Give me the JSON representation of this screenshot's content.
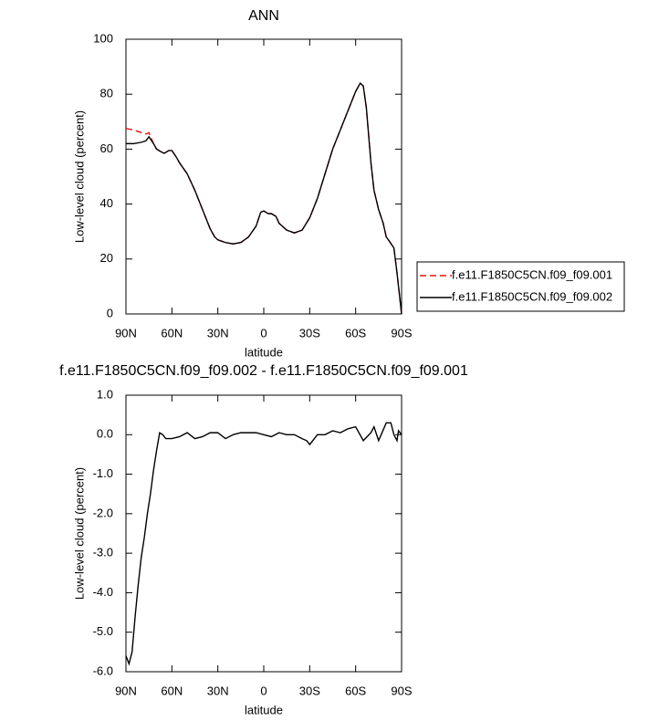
{
  "chart_data": [
    {
      "type": "line",
      "title": "ANN",
      "x_label": "latitude",
      "y_label": "Low-level cloud (percent)",
      "xlim": [
        90,
        -90
      ],
      "xticks": [
        {
          "value": 90,
          "label": "90N"
        },
        {
          "value": 60,
          "label": "60N"
        },
        {
          "value": 30,
          "label": "30N"
        },
        0,
        {
          "value": -30,
          "label": "30S"
        },
        {
          "value": -60,
          "label": "60S"
        },
        {
          "value": -90,
          "label": "90S"
        }
      ],
      "ylim": [
        0,
        100
      ],
      "yticks": [
        0,
        20,
        40,
        60,
        80,
        100
      ],
      "legend": "right",
      "x": [
        90,
        85,
        80,
        77,
        75,
        72,
        70,
        67,
        65,
        62,
        60,
        57,
        55,
        50,
        45,
        40,
        35,
        32,
        30,
        25,
        20,
        15,
        10,
        5,
        2,
        0,
        -3,
        -5,
        -8,
        -10,
        -15,
        -20,
        -25,
        -30,
        -35,
        -40,
        -45,
        -50,
        -55,
        -60,
        -63,
        -65,
        -67,
        -70,
        -72,
        -75,
        -78,
        -80,
        -82,
        -85,
        -87,
        -90
      ],
      "series": [
        {
          "name": "f.e11.F1850C5CN.f09_f09.001",
          "color": "#e8140f",
          "dash": "dashed",
          "values": [
            67.5,
            67,
            66,
            65.5,
            66,
            62,
            60,
            59,
            58.5,
            59.5,
            59.5,
            57,
            55,
            51,
            45,
            38,
            31,
            28,
            27,
            26,
            25.5,
            26,
            28,
            32,
            37,
            37.5,
            36.5,
            36.5,
            35.5,
            33,
            30.5,
            29.5,
            30.5,
            35,
            42,
            51,
            60,
            67,
            74,
            81,
            84,
            83,
            75,
            55,
            45,
            38,
            33,
            28,
            26.5,
            24,
            15,
            0
          ]
        },
        {
          "name": "f.e11.F1850C5CN.f09_f09.002",
          "color": "#000000",
          "dash": "solid",
          "values": [
            62,
            62,
            62.5,
            63,
            64.5,
            62,
            60,
            59,
            58.5,
            59.5,
            59.5,
            57,
            55,
            51,
            45,
            38,
            31,
            28,
            27,
            26,
            25.5,
            26,
            28,
            32,
            37,
            37.5,
            36.5,
            36.5,
            35.5,
            33,
            30.5,
            29.5,
            30.5,
            35,
            42,
            51,
            60,
            67,
            74,
            81,
            84,
            83,
            75,
            55,
            45,
            38,
            33,
            28,
            26.5,
            24,
            15,
            0
          ]
        }
      ]
    },
    {
      "type": "line",
      "title": "f.e11.F1850C5CN.f09_f09.002 - f.e11.F1850C5CN.f09_f09.001",
      "x_label": "latitude",
      "y_label": "Low-level cloud (percent)",
      "xlim": [
        90,
        -90
      ],
      "xticks": [
        {
          "value": 90,
          "label": "90N"
        },
        {
          "value": 60,
          "label": "60N"
        },
        {
          "value": 30,
          "label": "30N"
        },
        0,
        {
          "value": -30,
          "label": "30S"
        },
        {
          "value": -60,
          "label": "60S"
        },
        {
          "value": -90,
          "label": "90S"
        }
      ],
      "ylim": [
        -6,
        1
      ],
      "yticks": [
        {
          "value": 1,
          "label": "1.0"
        },
        {
          "value": 0,
          "label": "0.0"
        },
        {
          "value": -1,
          "label": "-1.0"
        },
        {
          "value": -2,
          "label": "-2.0"
        },
        {
          "value": -3,
          "label": "-3.0"
        },
        {
          "value": -4,
          "label": "-4.0"
        },
        {
          "value": -5,
          "label": "-5.0"
        },
        {
          "value": -6,
          "label": "-6.0"
        }
      ],
      "x": [
        90,
        88,
        86,
        84,
        82,
        80,
        78,
        76,
        74,
        72,
        70,
        68,
        66,
        64,
        60,
        55,
        50,
        45,
        40,
        35,
        30,
        25,
        20,
        15,
        10,
        5,
        0,
        -5,
        -10,
        -15,
        -20,
        -25,
        -28,
        -30,
        -32,
        -35,
        -40,
        -45,
        -50,
        -55,
        -60,
        -65,
        -70,
        -72,
        -75,
        -80,
        -83,
        -85,
        -87,
        -88,
        -90
      ],
      "series": [
        {
          "color": "#000000",
          "dash": "solid",
          "values": [
            -5.6,
            -5.8,
            -5.5,
            -4.6,
            -3.8,
            -3.1,
            -2.6,
            -2.0,
            -1.5,
            -0.9,
            -0.4,
            0.05,
            0.0,
            -0.1,
            -0.1,
            -0.05,
            0.05,
            -0.1,
            -0.05,
            0.05,
            0.05,
            -0.1,
            0.0,
            0.05,
            0.05,
            0.05,
            0.0,
            -0.05,
            0.05,
            0.0,
            0.0,
            -0.1,
            -0.15,
            -0.25,
            -0.15,
            0.0,
            0.0,
            0.1,
            0.05,
            0.15,
            0.2,
            -0.15,
            0.05,
            0.2,
            -0.15,
            0.3,
            0.3,
            0.0,
            -0.15,
            0.1,
            0.0
          ]
        }
      ]
    }
  ]
}
